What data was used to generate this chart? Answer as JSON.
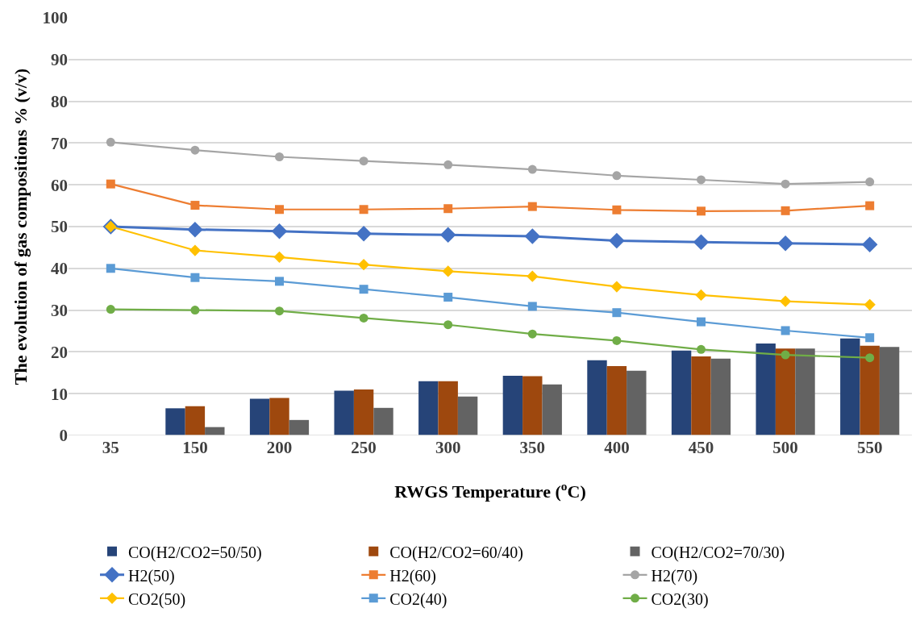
{
  "chart_data": {
    "type": "bar",
    "xlabel": "RWGS Temperature ($^{o}$C)",
    "ylabel": "The evolution of gas compositions % (v/v)",
    "categories": [
      "35",
      "150",
      "200",
      "250",
      "300",
      "350",
      "400",
      "450",
      "500",
      "550"
    ],
    "ylim": [
      0,
      100
    ],
    "yticks": [
      0,
      10,
      20,
      30,
      40,
      50,
      60,
      70,
      80,
      90,
      100
    ],
    "grid": "y",
    "legend": "bottom",
    "series": [
      {
        "name": "CO(H2/CO2=50/50)",
        "color": "#264478",
        "values": [
          0,
          6.5,
          8.8,
          10.7,
          13.0,
          14.3,
          18.0,
          20.3,
          22.0,
          23.2
        ]
      },
      {
        "name": "CO(H2/CO2=60/40)",
        "color": "#9e480e",
        "values": [
          0,
          7.0,
          9.0,
          11.0,
          13.0,
          14.2,
          16.6,
          18.9,
          20.8,
          21.5
        ]
      },
      {
        "name": "CO(H2/CO2=70/30)",
        "color": "#636363",
        "values": [
          0,
          2.0,
          3.7,
          6.6,
          9.3,
          12.2,
          15.5,
          18.4,
          20.8,
          21.2
        ]
      },
      {
        "name": "H2(50)",
        "type": "line",
        "marker": "diamond",
        "color": "#4472c4",
        "values": [
          50,
          49.3,
          48.9,
          48.3,
          48.0,
          47.7,
          46.6,
          46.3,
          46.0,
          45.7
        ]
      },
      {
        "name": "H2(60)",
        "type": "line",
        "marker": "square",
        "color": "#ed7d31",
        "values": [
          60.2,
          55.1,
          54.1,
          54.1,
          54.3,
          54.8,
          54.0,
          53.7,
          53.8,
          55.0
        ]
      },
      {
        "name": "H2(70)",
        "type": "line",
        "marker": "circle",
        "color": "#a5a5a5",
        "values": [
          70.2,
          68.3,
          66.7,
          65.7,
          64.8,
          63.7,
          62.2,
          61.2,
          60.2,
          60.7
        ]
      },
      {
        "name": "CO2(50)",
        "type": "line",
        "marker": "diamond",
        "color": "#ffc000",
        "values": [
          50,
          44.3,
          42.7,
          40.9,
          39.3,
          38.1,
          35.6,
          33.6,
          32.1,
          31.3
        ]
      },
      {
        "name": "CO2(40)",
        "type": "line",
        "marker": "square",
        "color": "#5b9bd5",
        "values": [
          40,
          37.8,
          36.9,
          35.0,
          33.1,
          30.9,
          29.4,
          27.2,
          25.1,
          23.4
        ]
      },
      {
        "name": "CO2(30)",
        "type": "line",
        "marker": "circle",
        "color": "#70ad47",
        "values": [
          30.2,
          30.0,
          29.8,
          28.1,
          26.5,
          24.3,
          22.7,
          20.6,
          19.3,
          18.6
        ]
      }
    ]
  }
}
